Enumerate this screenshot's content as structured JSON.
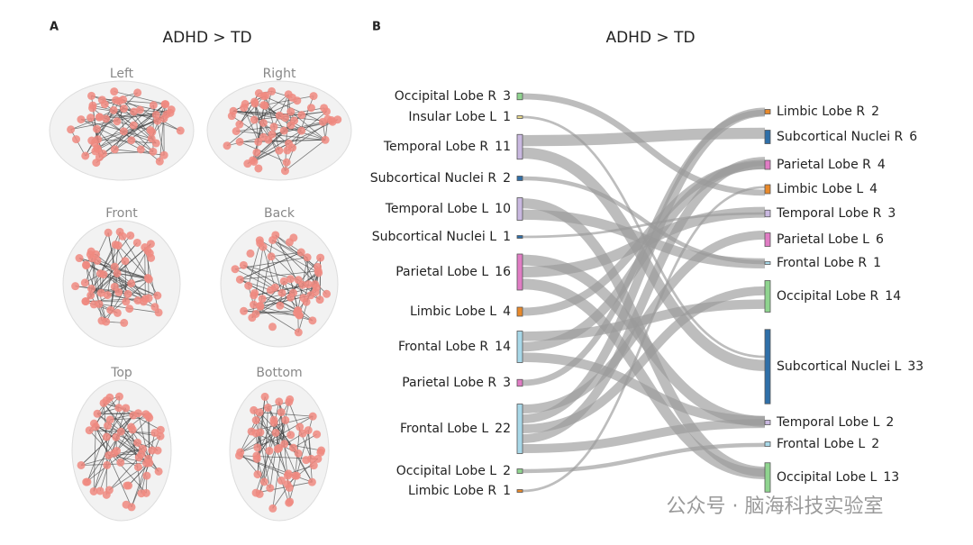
{
  "panel_a": {
    "letter": "A",
    "title": "ADHD > TD",
    "views": [
      "Left",
      "Right",
      "Front",
      "Back",
      "Top",
      "Bottom"
    ]
  },
  "panel_b": {
    "letter": "B",
    "title": "ADHD > TD",
    "left_nodes": [
      {
        "name": "Occipital Lobe R",
        "count": 3,
        "color": "#8fd48f"
      },
      {
        "name": "Insular Lobe L",
        "count": 1,
        "color": "#e8d98a"
      },
      {
        "name": "Temporal Lobe R",
        "count": 11,
        "color": "#c9b8e0"
      },
      {
        "name": "Subcortical Nuclei R",
        "count": 2,
        "color": "#2f6fa8"
      },
      {
        "name": "Temporal Lobe L",
        "count": 10,
        "color": "#c9b8e0"
      },
      {
        "name": "Subcortical Nuclei L",
        "count": 1,
        "color": "#2f6fa8"
      },
      {
        "name": "Parietal Lobe L",
        "count": 16,
        "color": "#e07cc4"
      },
      {
        "name": "Limbic Lobe L",
        "count": 4,
        "color": "#e8892a"
      },
      {
        "name": "Frontal Lobe R",
        "count": 14,
        "color": "#a8d8e8"
      },
      {
        "name": "Parietal Lobe R",
        "count": 3,
        "color": "#e07cc4"
      },
      {
        "name": "Frontal Lobe L",
        "count": 22,
        "color": "#a8d8e8"
      },
      {
        "name": "Occipital Lobe L",
        "count": 2,
        "color": "#8fd48f"
      },
      {
        "name": "Limbic Lobe R",
        "count": 1,
        "color": "#e8892a"
      }
    ],
    "right_nodes": [
      {
        "name": "Limbic Lobe R",
        "count": 2,
        "color": "#e8892a"
      },
      {
        "name": "Subcortical Nuclei R",
        "count": 6,
        "color": "#2f6fa8"
      },
      {
        "name": "Parietal Lobe R",
        "count": 4,
        "color": "#e07cc4"
      },
      {
        "name": "Limbic Lobe L",
        "count": 4,
        "color": "#e8892a"
      },
      {
        "name": "Temporal Lobe R",
        "count": 3,
        "color": "#c9b8e0"
      },
      {
        "name": "Parietal Lobe L",
        "count": 6,
        "color": "#e07cc4"
      },
      {
        "name": "Frontal Lobe R",
        "count": 1,
        "color": "#a8d8e8"
      },
      {
        "name": "Occipital Lobe R",
        "count": 14,
        "color": "#8fd48f"
      },
      {
        "name": "Subcortical Nuclei L",
        "count": 33,
        "color": "#2f6fa8"
      },
      {
        "name": "Temporal Lobe L",
        "count": 2,
        "color": "#c9b8e0"
      },
      {
        "name": "Frontal Lobe L",
        "count": 2,
        "color": "#a8d8e8"
      },
      {
        "name": "Occipital Lobe L",
        "count": 13,
        "color": "#8fd48f"
      }
    ]
  },
  "watermark": "公众号 · 脑海科技实验室"
}
